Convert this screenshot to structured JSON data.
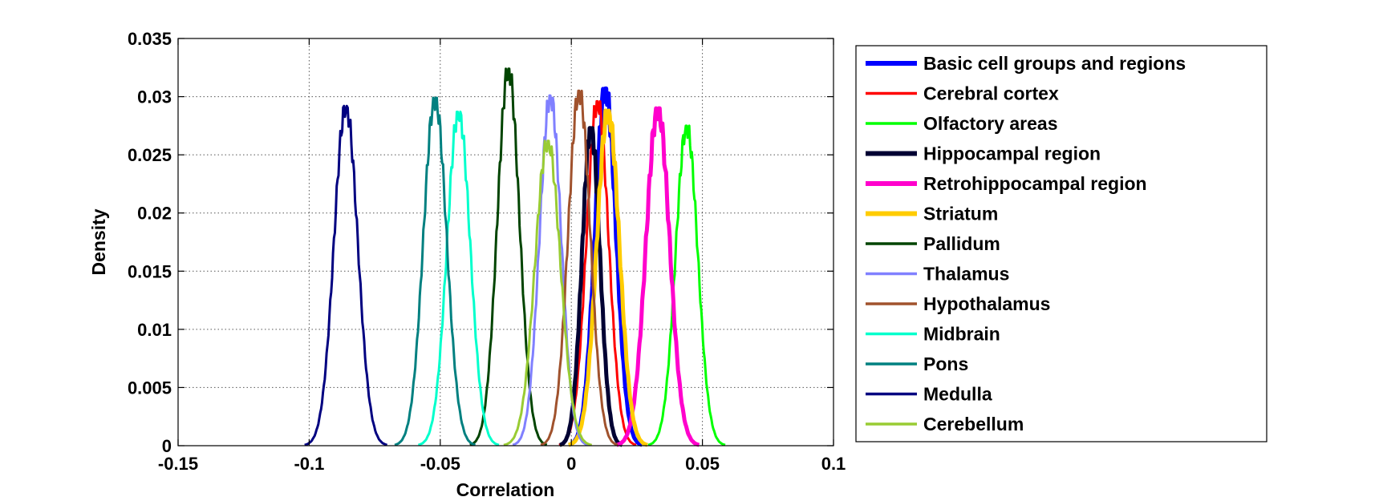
{
  "chart_data": {
    "type": "line",
    "title": "",
    "xlabel": "Correlation",
    "ylabel": "Density",
    "xlim": [
      -0.15,
      0.1
    ],
    "ylim": [
      0,
      0.035
    ],
    "x_ticks": [
      "-0.15",
      "-0.1",
      "-0.05",
      "0",
      "0.05",
      "0.1"
    ],
    "x_tick_values": [
      -0.15,
      -0.1,
      -0.05,
      0,
      0.05,
      0.1
    ],
    "y_ticks": [
      "0",
      "0.005",
      "0.01",
      "0.015",
      "0.02",
      "0.025",
      "0.03",
      "0.035"
    ],
    "y_tick_values": [
      0,
      0.005,
      0.01,
      0.015,
      0.02,
      0.025,
      0.03,
      0.035
    ],
    "grid": true,
    "legend_position": "outside-right",
    "series": [
      {
        "name": "Basic cell groups and regions",
        "color": "#0000ff",
        "heavy": true,
        "mean": 0.013,
        "peak": 0.0307,
        "sd": 0.004
      },
      {
        "name": "Cerebral cortex",
        "color": "#ff0000",
        "heavy": false,
        "mean": 0.01,
        "peak": 0.0296,
        "sd": 0.0042
      },
      {
        "name": "Olfactory areas",
        "color": "#00ff00",
        "heavy": false,
        "mean": 0.044,
        "peak": 0.0275,
        "sd": 0.0042
      },
      {
        "name": "Hippocampal region",
        "color": "#000033",
        "heavy": true,
        "mean": 0.0075,
        "peak": 0.0273,
        "sd": 0.0034
      },
      {
        "name": "Retrohippocampal region",
        "color": "#ff00cc",
        "heavy": true,
        "mean": 0.033,
        "peak": 0.029,
        "sd": 0.0045
      },
      {
        "name": "Striatum",
        "color": "#ffcc00",
        "heavy": true,
        "mean": 0.014,
        "peak": 0.0288,
        "sd": 0.0043
      },
      {
        "name": "Pallidum",
        "color": "#004400",
        "heavy": false,
        "mean": -0.024,
        "peak": 0.0324,
        "sd": 0.0042
      },
      {
        "name": "Thalamus",
        "color": "#8080ff",
        "heavy": false,
        "mean": -0.008,
        "peak": 0.0301,
        "sd": 0.0041
      },
      {
        "name": "Hypothalamus",
        "color": "#a0522d",
        "heavy": false,
        "mean": 0.003,
        "peak": 0.0305,
        "sd": 0.0042
      },
      {
        "name": "Midbrain",
        "color": "#00ffcc",
        "heavy": false,
        "mean": -0.043,
        "peak": 0.0287,
        "sd": 0.0044
      },
      {
        "name": "Pons",
        "color": "#008080",
        "heavy": false,
        "mean": -0.052,
        "peak": 0.0299,
        "sd": 0.0044
      },
      {
        "name": "Medulla",
        "color": "#000080",
        "heavy": false,
        "mean": -0.086,
        "peak": 0.0292,
        "sd": 0.0045
      },
      {
        "name": "Cerebellum",
        "color": "#99cc33",
        "heavy": false,
        "mean": -0.009,
        "peak": 0.0262,
        "sd": 0.0048
      }
    ]
  }
}
